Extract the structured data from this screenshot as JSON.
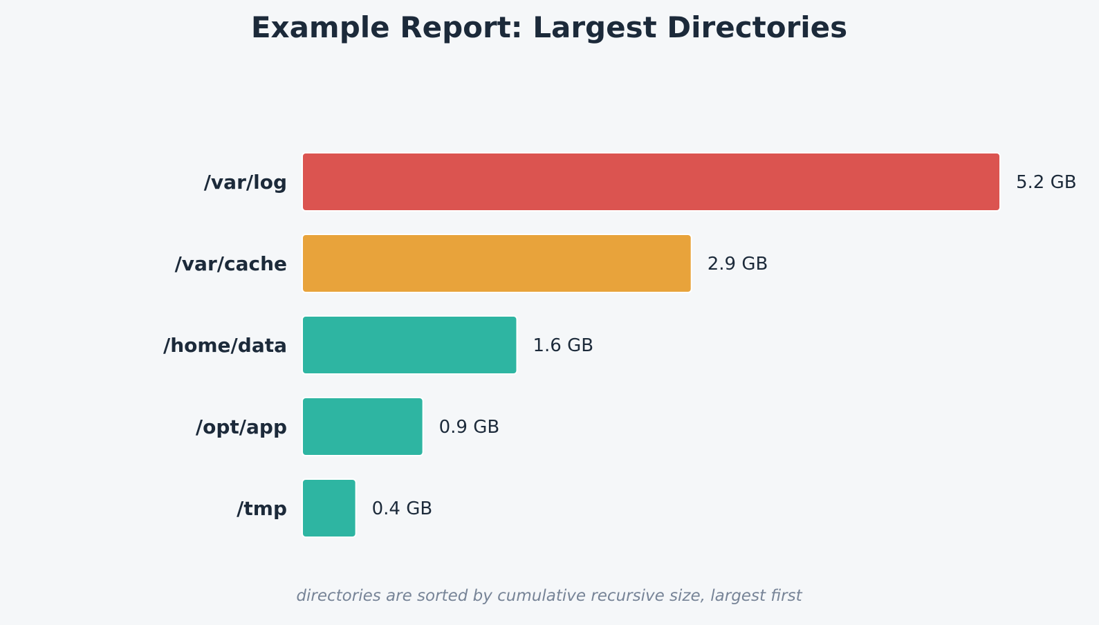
{
  "chart_data": {
    "type": "bar",
    "orientation": "horizontal",
    "title": "Example Report: Largest Directories",
    "caption": "directories are sorted by cumulative recursive size, largest first",
    "categories": [
      "/var/log",
      "/var/cache",
      "/home/data",
      "/opt/app",
      "/tmp"
    ],
    "values": [
      5.2,
      2.9,
      1.6,
      0.9,
      0.4
    ],
    "value_labels": [
      "5.2 GB",
      "2.9 GB",
      "1.6 GB",
      "0.9 GB",
      "0.4 GB"
    ],
    "unit": "GB",
    "xlim": [
      0,
      5.2
    ],
    "grid": false,
    "legend": "none",
    "colors": [
      "#db5450",
      "#e8a33b",
      "#2eb5a2",
      "#2eb5a2",
      "#2eb5a2"
    ]
  }
}
